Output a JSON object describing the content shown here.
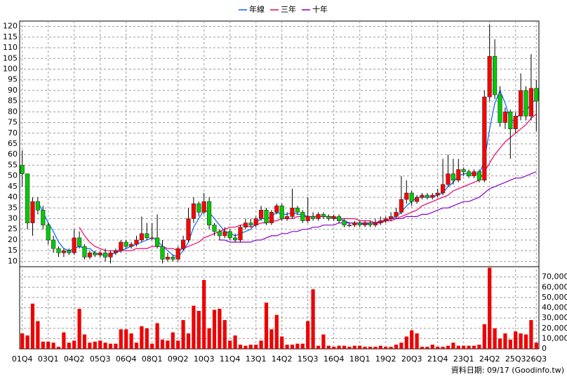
{
  "chart_data": {
    "type": "candlestick",
    "legend": "top",
    "source": "資料日期: 09/17 (Goodinfo.tw)",
    "up_color": "#ff0000",
    "down_color": "#00cc00",
    "volume_color": "#ee0000",
    "categories": [
      "01Q4",
      null,
      null,
      null,
      null,
      "03Q1",
      null,
      null,
      null,
      null,
      "04Q2",
      null,
      null,
      null,
      null,
      "05Q3",
      null,
      null,
      null,
      null,
      "06Q4",
      null,
      null,
      null,
      null,
      "08Q1",
      null,
      null,
      null,
      null,
      "09Q2",
      null,
      null,
      null,
      null,
      "10Q3",
      null,
      null,
      null,
      null,
      "11Q4",
      null,
      null,
      null,
      null,
      "13Q1",
      null,
      null,
      null,
      null,
      "14Q2",
      null,
      null,
      null,
      null,
      "15Q3",
      null,
      null,
      null,
      null,
      "16Q4",
      null,
      null,
      null,
      null,
      "18Q1",
      null,
      null,
      null,
      null,
      "19Q2",
      null,
      null,
      null,
      null,
      "20Q3",
      null,
      null,
      null,
      null,
      "21Q4",
      null,
      null,
      null,
      null,
      "23Q1",
      null,
      null,
      null,
      null,
      "24Q2",
      null,
      null,
      null,
      null,
      "25Q3",
      null,
      null,
      null,
      "26Q3"
    ],
    "open": [
      55,
      51,
      28,
      38,
      34,
      27,
      20,
      16,
      14,
      15,
      14,
      21,
      17,
      12,
      14,
      13,
      14,
      12,
      14,
      15,
      19,
      17,
      18,
      20,
      23,
      21,
      21,
      17,
      11,
      12,
      11,
      16,
      20,
      30,
      37,
      33,
      38,
      27,
      24,
      22,
      24,
      21,
      20,
      26,
      28,
      27,
      30,
      34,
      28,
      33,
      36,
      30,
      31,
      35,
      33,
      29,
      31,
      30,
      32,
      31,
      30,
      31,
      29,
      27,
      27,
      28,
      27,
      28,
      27,
      28,
      29,
      30,
      31,
      33,
      39,
      42,
      38,
      40,
      41,
      40,
      41,
      42,
      46,
      51,
      48,
      53,
      52,
      50,
      52,
      48,
      87,
      106,
      88,
      75,
      80,
      72,
      78,
      90,
      78,
      91
    ],
    "high": [
      62,
      51,
      40,
      40,
      36,
      28,
      22,
      17,
      16,
      16,
      25,
      24,
      18,
      15,
      15,
      15,
      16,
      15,
      16,
      20,
      20,
      19,
      22,
      31,
      28,
      28,
      32,
      20,
      14,
      13,
      17,
      22,
      35,
      40,
      38,
      42,
      40,
      28,
      25,
      26,
      25,
      23,
      27,
      30,
      30,
      31,
      36,
      35,
      34,
      37,
      37,
      33,
      44,
      36,
      34,
      40,
      33,
      33,
      33,
      32,
      32,
      32,
      30,
      28,
      29,
      29,
      29,
      29,
      30,
      31,
      31,
      33,
      35,
      50,
      48,
      43,
      41,
      42,
      42,
      42,
      44,
      58,
      60,
      58,
      58,
      54,
      53,
      53,
      53,
      90,
      121,
      114,
      92,
      82,
      81,
      80,
      98,
      92,
      107,
      95
    ],
    "low": [
      45,
      25,
      22,
      32,
      25,
      18,
      14,
      12,
      12,
      13,
      13,
      16,
      11,
      11,
      12,
      12,
      10,
      9,
      13,
      14,
      16,
      16,
      17,
      19,
      20,
      20,
      16,
      9,
      10,
      10,
      10,
      15,
      19,
      28,
      31,
      32,
      25,
      22,
      20,
      21,
      20,
      19,
      19,
      25,
      26,
      26,
      29,
      27,
      27,
      32,
      29,
      29,
      30,
      32,
      28,
      28,
      29,
      29,
      30,
      29,
      29,
      28,
      26,
      26,
      26,
      26,
      26,
      26,
      26,
      27,
      28,
      29,
      30,
      32,
      37,
      36,
      37,
      39,
      39,
      39,
      40,
      41,
      45,
      46,
      47,
      50,
      49,
      49,
      47,
      47,
      85,
      86,
      73,
      72,
      58,
      70,
      76,
      76,
      76,
      71
    ],
    "close": [
      51,
      28,
      38,
      34,
      27,
      20,
      16,
      14,
      15,
      14,
      21,
      17,
      12,
      14,
      13,
      14,
      12,
      14,
      15,
      19,
      17,
      18,
      20,
      23,
      21,
      21,
      17,
      11,
      12,
      11,
      16,
      20,
      30,
      37,
      33,
      38,
      27,
      24,
      22,
      24,
      21,
      20,
      26,
      28,
      27,
      30,
      34,
      28,
      33,
      36,
      30,
      31,
      35,
      33,
      29,
      31,
      30,
      32,
      31,
      30,
      31,
      29,
      27,
      27,
      28,
      27,
      28,
      27,
      28,
      29,
      30,
      31,
      33,
      39,
      42,
      38,
      40,
      41,
      40,
      41,
      42,
      46,
      51,
      48,
      53,
      52,
      50,
      52,
      48,
      87,
      106,
      88,
      75,
      80,
      72,
      78,
      90,
      78,
      91,
      85
    ],
    "volume": [
      15000,
      13000,
      44000,
      27000,
      7000,
      7000,
      6000,
      2000,
      16000,
      6000,
      8000,
      39000,
      14000,
      6000,
      7000,
      8000,
      6000,
      5000,
      5000,
      19000,
      19000,
      15000,
      6000,
      22000,
      20000,
      5000,
      25000,
      9000,
      8000,
      16000,
      8000,
      28000,
      15000,
      42000,
      37000,
      67000,
      20000,
      38000,
      39000,
      28000,
      8000,
      13000,
      4000,
      3000,
      4000,
      4000,
      8000,
      45000,
      19000,
      33000,
      12000,
      4000,
      4000,
      5000,
      5000,
      27000,
      58000,
      3000,
      14000,
      3000,
      2000,
      3000,
      3000,
      2000,
      3000,
      3000,
      2000,
      2000,
      2000,
      3000,
      2000,
      2000,
      4000,
      6000,
      12000,
      18000,
      15000,
      2000,
      2000,
      4000,
      2000,
      2000,
      3000,
      6000,
      3000,
      3000,
      3000,
      3000,
      4000,
      24000,
      79000,
      20000,
      10000,
      15000,
      9000,
      17000,
      15000,
      14000,
      28000,
      6000
    ],
    "series": [
      {
        "name": "年線",
        "color": "#0066ff",
        "values": [
          null,
          null,
          null,
          38,
          33,
          28,
          24,
          19,
          16,
          15,
          16,
          17,
          16,
          16,
          14,
          13,
          13,
          13,
          14,
          15,
          16,
          17,
          18,
          19,
          20,
          21,
          20,
          17,
          15,
          13,
          12,
          15,
          19,
          26,
          30,
          34,
          33,
          30,
          27,
          24,
          23,
          22,
          23,
          24,
          25,
          28,
          30,
          30,
          31,
          33,
          32,
          32,
          33,
          32,
          32,
          31,
          31,
          31,
          31,
          31,
          30,
          30,
          29,
          28,
          28,
          28,
          27,
          28,
          28,
          28,
          29,
          30,
          31,
          33,
          36,
          38,
          40,
          40,
          40,
          40,
          41,
          42,
          45,
          47,
          50,
          51,
          51,
          51,
          51,
          57,
          72,
          84,
          90,
          84,
          76,
          76,
          80,
          80,
          84,
          86
        ]
      },
      {
        "name": "三年",
        "color": "#ee0066",
        "values": [
          null,
          null,
          null,
          null,
          null,
          null,
          null,
          null,
          null,
          null,
          null,
          26,
          22,
          19,
          17,
          16,
          15,
          15,
          15,
          15,
          15,
          15,
          16,
          16,
          16,
          17,
          17,
          17,
          16,
          16,
          15,
          16,
          17,
          18,
          19,
          21,
          22,
          23,
          24,
          25,
          26,
          26,
          27,
          27,
          26,
          27,
          28,
          28,
          29,
          29,
          30,
          30,
          30,
          31,
          31,
          31,
          31,
          31,
          31,
          31,
          31,
          30,
          30,
          30,
          30,
          29,
          29,
          29,
          28,
          28,
          29,
          29,
          30,
          31,
          32,
          33,
          34,
          36,
          37,
          38,
          39,
          40,
          41,
          43,
          44,
          45,
          46,
          47,
          48,
          52,
          56,
          60,
          63,
          66,
          68,
          70,
          72,
          74,
          77,
          79
        ]
      },
      {
        "name": "十年",
        "color": "#8800cc",
        "values": [
          null,
          null,
          null,
          null,
          null,
          null,
          null,
          null,
          null,
          null,
          null,
          null,
          null,
          null,
          null,
          null,
          null,
          null,
          null,
          null,
          null,
          null,
          null,
          null,
          null,
          null,
          null,
          null,
          null,
          null,
          null,
          null,
          null,
          null,
          null,
          null,
          null,
          null,
          20,
          20,
          19,
          19,
          19,
          19,
          19,
          20,
          20,
          21,
          22,
          22,
          23,
          23,
          24,
          24,
          25,
          25,
          26,
          26,
          27,
          27,
          27,
          28,
          28,
          28,
          28,
          28,
          28,
          28,
          28,
          29,
          29,
          30,
          30,
          30,
          31,
          31,
          31,
          32,
          32,
          33,
          34,
          35,
          35,
          36,
          37,
          38,
          38,
          39,
          40,
          42,
          44,
          45,
          46,
          47,
          48,
          49,
          49,
          50,
          51,
          52
        ]
      }
    ],
    "ylim": [
      7.5,
      122.5
    ],
    "yticks": [
      10,
      15,
      20,
      25,
      30,
      35,
      40,
      45,
      50,
      55,
      60,
      65,
      70,
      75,
      80,
      85,
      90,
      95,
      100,
      105,
      110,
      115,
      120
    ],
    "volume_ylim": [
      0,
      80000
    ],
    "volume_yticks": [
      0,
      {
        "value": 10000,
        "label": "10,000"
      },
      {
        "value": 20000,
        "label": "20,000"
      },
      {
        "value": 30000,
        "label": "30,000"
      },
      {
        "value": 40000,
        "label": "40,000"
      },
      {
        "value": 50000,
        "label": "50,000"
      },
      {
        "value": 60000,
        "label": "60,000"
      },
      {
        "value": 70000,
        "label": "70,000"
      }
    ],
    "grid": true
  }
}
